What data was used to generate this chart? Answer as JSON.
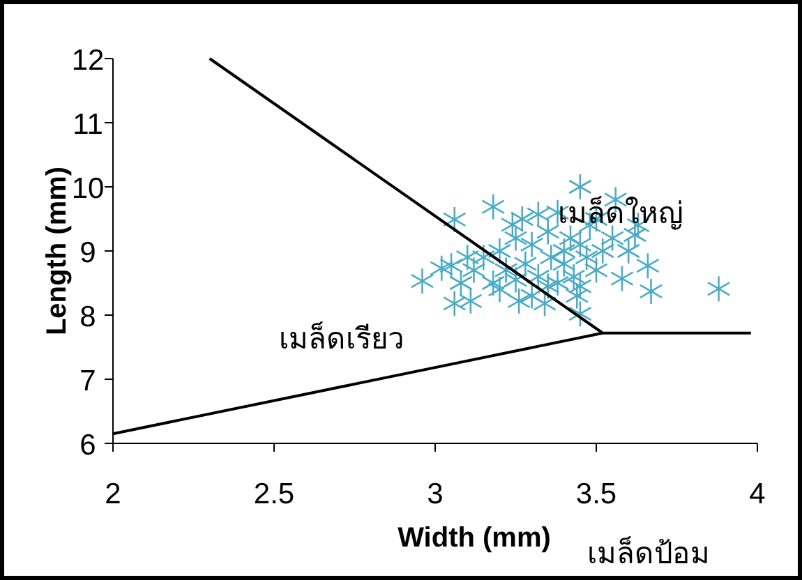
{
  "chart_data": {
    "type": "scatter",
    "xlabel": "Width (mm)",
    "ylabel": "Length (mm)",
    "xlim": [
      2,
      4
    ],
    "ylim": [
      6,
      12
    ],
    "xticks": [
      2,
      2.5,
      3,
      3.5,
      4
    ],
    "yticks": [
      6,
      7,
      8,
      9,
      10,
      11,
      12
    ],
    "grid": false,
    "annotations": [
      "เมล็ดใหญ่",
      "เมล็ดเรียว",
      "เมล็ดป้อม"
    ],
    "series": [
      {
        "color": "#4bacc6",
        "marker": "cross",
        "x": [
          2.96,
          3.06,
          3.18,
          3.05,
          3.02,
          3.06,
          3.11,
          3.26,
          3.45,
          3.56,
          3.88,
          3.67,
          3.66,
          3.58,
          3.45,
          3.34,
          3.62,
          3.32,
          3.24,
          3.15,
          3.2,
          3.22,
          3.25,
          3.28,
          3.3,
          3.32,
          3.35,
          3.36,
          3.38,
          3.4,
          3.4,
          3.42,
          3.43,
          3.45,
          3.47,
          3.48,
          3.5,
          3.52,
          3.55,
          3.5,
          3.38,
          3.27,
          3.12,
          3.18,
          3.1,
          3.2,
          3.3,
          3.44,
          3.6,
          3.63,
          3.08,
          3.25,
          3.35,
          3.45
        ],
        "values": [
          8.53,
          9.49,
          9.69,
          8.77,
          8.73,
          8.18,
          8.22,
          8.22,
          10.0,
          9.8,
          8.41,
          8.37,
          8.77,
          8.57,
          8.02,
          8.18,
          9.25,
          9.57,
          9.41,
          8.9,
          9.0,
          8.7,
          9.2,
          8.8,
          9.1,
          8.6,
          9.3,
          8.9,
          8.5,
          9.0,
          8.8,
          9.2,
          8.6,
          9.1,
          8.9,
          9.4,
          8.7,
          9.0,
          9.2,
          9.5,
          9.6,
          9.5,
          8.7,
          8.5,
          8.9,
          8.4,
          8.3,
          8.3,
          9.0,
          9.4,
          8.5,
          8.55,
          8.45,
          8.45
        ]
      },
      {
        "type": "line",
        "color": "#000000",
        "marker": "none",
        "x": [
          2.3,
          3.52,
          3.98
        ],
        "values": [
          12,
          7.72,
          7.72
        ]
      },
      {
        "type": "line",
        "color": "#000000",
        "marker": "none",
        "x": [
          2,
          3.52
        ],
        "values": [
          6.15,
          7.72
        ]
      }
    ]
  }
}
